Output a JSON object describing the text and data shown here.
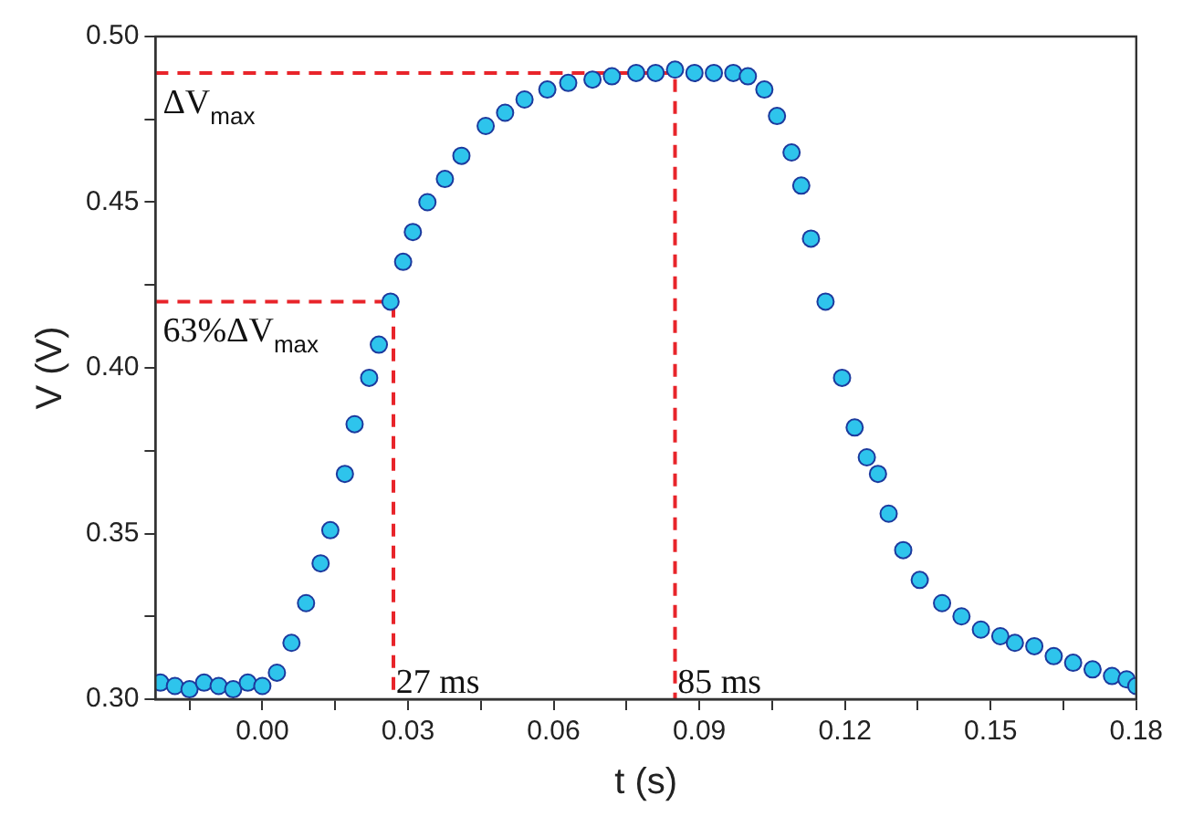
{
  "chart_data": {
    "type": "scatter",
    "xlabel": "t (s)",
    "ylabel": "V (V)",
    "marker": "circle",
    "grid": false,
    "legend": false,
    "xlim": [
      -0.022,
      0.18
    ],
    "ylim": [
      0.3,
      0.5
    ],
    "xticks": [
      {
        "value": -0.015,
        "label": null
      },
      {
        "value": 0,
        "label": "0.00"
      },
      {
        "value": 0.015,
        "label": null
      },
      0.03,
      {
        "value": 0.045,
        "label": null
      },
      0.06,
      {
        "value": 0.075,
        "label": null
      },
      0.09,
      {
        "value": 0.105,
        "label": null
      },
      0.12,
      {
        "value": 0.135,
        "label": null
      },
      0.15,
      {
        "value": 0.165,
        "label": null
      },
      0.18
    ],
    "yticks": [
      {
        "value": 0.3,
        "label": "0.30"
      },
      {
        "value": 0.325,
        "label": null
      },
      0.35,
      {
        "value": 0.375,
        "label": null
      },
      {
        "value": 0.4,
        "label": "0.40"
      },
      {
        "value": 0.425,
        "label": null
      },
      0.45,
      {
        "value": 0.475,
        "label": null
      },
      {
        "value": 0.5,
        "label": "0.50"
      }
    ],
    "series": [
      {
        "color": "#2ec4ec",
        "x": [
          -0.021,
          -0.018,
          -0.015,
          -0.012,
          -0.009,
          -0.006,
          -0.003,
          0.0,
          0.003,
          0.006,
          0.009,
          0.012,
          0.014,
          0.017,
          0.019,
          0.022,
          0.024,
          0.0264,
          0.029,
          0.031,
          0.034,
          0.0376,
          0.041,
          0.046,
          0.05,
          0.054,
          0.0587,
          0.063,
          0.068,
          0.072,
          0.077,
          0.081,
          0.085,
          0.089,
          0.093,
          0.097,
          0.1,
          0.1034,
          0.106,
          0.109,
          0.111,
          0.113,
          0.116,
          0.1194,
          0.122,
          0.1245,
          0.1268,
          0.129,
          0.132,
          0.1354,
          0.14,
          0.144,
          0.148,
          0.152,
          0.155,
          0.159,
          0.163,
          0.167,
          0.171,
          0.175,
          0.178,
          0.18
        ],
        "values": [
          0.305,
          0.304,
          0.303,
          0.305,
          0.304,
          0.303,
          0.305,
          0.304,
          0.308,
          0.317,
          0.329,
          0.341,
          0.351,
          0.368,
          0.383,
          0.397,
          0.407,
          0.42,
          0.432,
          0.441,
          0.45,
          0.457,
          0.464,
          0.473,
          0.477,
          0.481,
          0.484,
          0.486,
          0.487,
          0.488,
          0.489,
          0.489,
          0.49,
          0.489,
          0.489,
          0.489,
          0.488,
          0.484,
          0.476,
          0.465,
          0.455,
          0.439,
          0.42,
          0.397,
          0.382,
          0.373,
          0.368,
          0.356,
          0.345,
          0.336,
          0.329,
          0.325,
          0.321,
          0.319,
          0.317,
          0.316,
          0.313,
          0.311,
          0.309,
          0.307,
          0.306,
          0.304
        ]
      },
      {
        "type": "line",
        "color": "#e8242a",
        "line_style": "dashed",
        "marker": "none",
        "x": [
          -0.022,
          0.085,
          0.085
        ],
        "values": [
          0.489,
          0.489,
          0.3
        ]
      },
      {
        "type": "line",
        "color": "#e8242a",
        "line_style": "dashed",
        "marker": "none",
        "x": [
          -0.022,
          0.027,
          0.027
        ],
        "values": [
          0.42,
          0.42,
          0.3
        ]
      }
    ],
    "annotations": [
      "ΔV$_{max}$",
      "63%ΔV$_{max}$",
      {
        "text": "27 ms",
        "x": 0.0275,
        "y": 0.302
      },
      {
        "text": "85 ms",
        "x": 0.0855,
        "y": 0.302
      }
    ]
  }
}
